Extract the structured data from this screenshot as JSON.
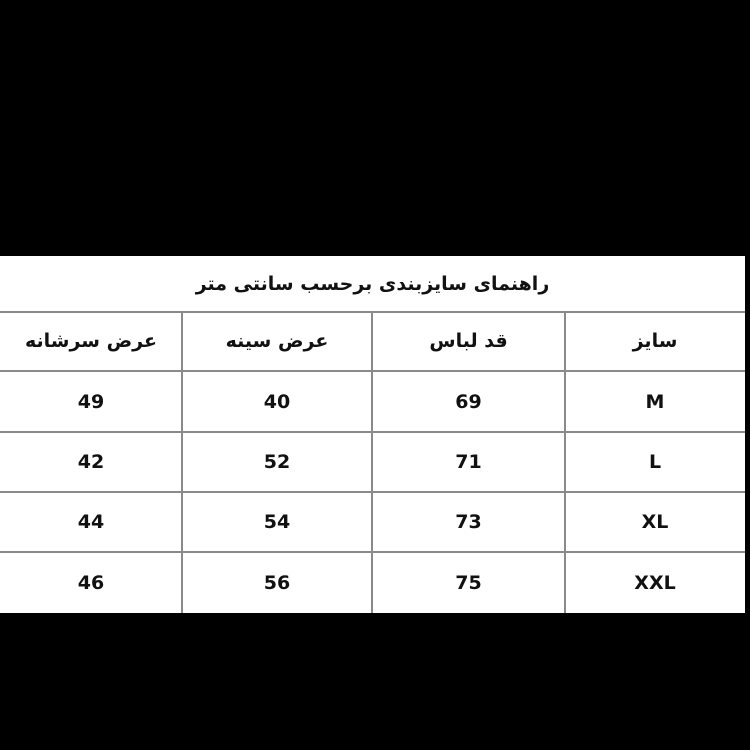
{
  "title": "راهنمای سایزبندی برحسب سانتی متر",
  "headers": [
    "سایز",
    "قد لباس",
    "عرض سینه",
    "عرض سرشانه"
  ],
  "rows": [
    [
      "M",
      "69",
      "40",
      "49"
    ],
    [
      "L",
      "71",
      "52",
      "42"
    ],
    [
      "XL",
      "73",
      "54",
      "44"
    ],
    [
      "XXL",
      "75",
      "56",
      "46"
    ]
  ]
}
